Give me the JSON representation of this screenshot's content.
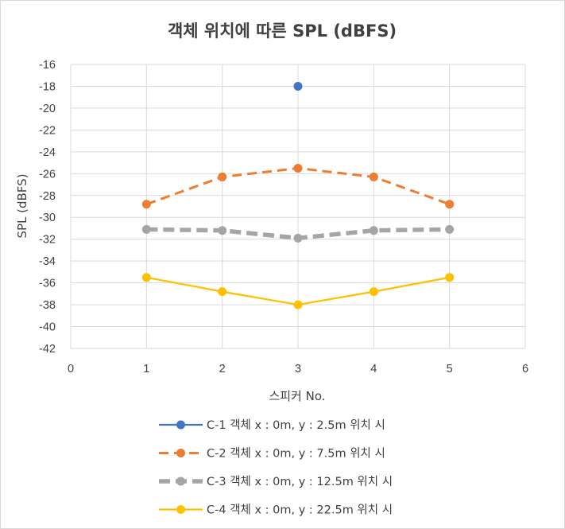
{
  "chart_data": {
    "type": "scatter",
    "title": "객체 위치에 따른 SPL (dBFS)",
    "xlabel": "스피커 No.",
    "ylabel": "SPL (dBFS)",
    "xlim": [
      0,
      6
    ],
    "ylim": [
      -42,
      -16
    ],
    "xticks": [
      0,
      1,
      2,
      3,
      4,
      5,
      6
    ],
    "yticks": [
      -16,
      -18,
      -20,
      -22,
      -24,
      -26,
      -28,
      -30,
      -32,
      -34,
      -36,
      -38,
      -40,
      -42
    ],
    "grid": true,
    "legend_position": "bottom",
    "series": [
      {
        "name": "C-1 객체 x : 0m, y : 2.5m 위치 시",
        "color": "#4472c4",
        "line_style": "solid",
        "points": [
          [
            3,
            -18
          ]
        ]
      },
      {
        "name": "C-2 객체 x : 0m, y : 7.5m 위치 시",
        "color": "#ed7d31",
        "line_style": "dashed",
        "points": [
          [
            1,
            -28.8
          ],
          [
            2,
            -26.3
          ],
          [
            3,
            -25.5
          ],
          [
            4,
            -26.3
          ],
          [
            5,
            -28.8
          ]
        ]
      },
      {
        "name": "C-3 객체 x : 0m, y : 12.5m 위치 시",
        "color": "#a5a5a5",
        "line_style": "thick-dashed",
        "points": [
          [
            1,
            -31.1
          ],
          [
            2,
            -31.2
          ],
          [
            3,
            -31.9
          ],
          [
            4,
            -31.2
          ],
          [
            5,
            -31.1
          ]
        ]
      },
      {
        "name": "C-4 객체 x : 0m, y : 22.5m 위치 시",
        "color": "#ffc000",
        "line_style": "solid",
        "points": [
          [
            1,
            -35.5
          ],
          [
            2,
            -36.8
          ],
          [
            3,
            -38.0
          ],
          [
            4,
            -36.8
          ],
          [
            5,
            -35.5
          ]
        ]
      }
    ]
  }
}
